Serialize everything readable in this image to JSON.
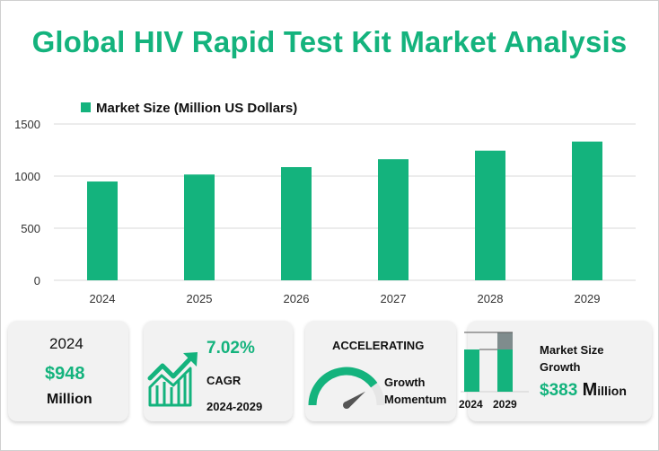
{
  "title": "Global HIV Rapid Test Kit Market Analysis",
  "colors": {
    "accent": "#14b37d",
    "grid": "#d9d9d9",
    "gray_bar": "#7f8c8d"
  },
  "chart_data": {
    "type": "bar",
    "title": "",
    "legend": "Market Size (Million US Dollars)",
    "legend_position": "top-left",
    "categories": [
      "2024",
      "2025",
      "2026",
      "2027",
      "2028",
      "2029"
    ],
    "values": [
      948,
      1015,
      1086,
      1162,
      1244,
      1331
    ],
    "ylim": [
      0,
      1500
    ],
    "yticks": [
      0,
      500,
      1000,
      1500
    ],
    "grid": true,
    "xlabel": "",
    "ylabel": ""
  },
  "cards": {
    "base": {
      "year": "2024",
      "value": "$948",
      "unit": "Million"
    },
    "cagr": {
      "value": "7.02%",
      "label": "CAGR",
      "period": "2024-2029"
    },
    "momentum": {
      "status": "ACCELERATING",
      "label_line1": "Growth",
      "label_line2": "Momentum",
      "gauge_level": 0.8
    },
    "growth": {
      "title_line1": "Market Size",
      "title_line2": "Growth",
      "value": "$383",
      "unit_initial": "M",
      "unit_rest": "illion",
      "years": [
        "2024",
        "2029"
      ],
      "base_value": 948,
      "end_value": 1331
    }
  }
}
